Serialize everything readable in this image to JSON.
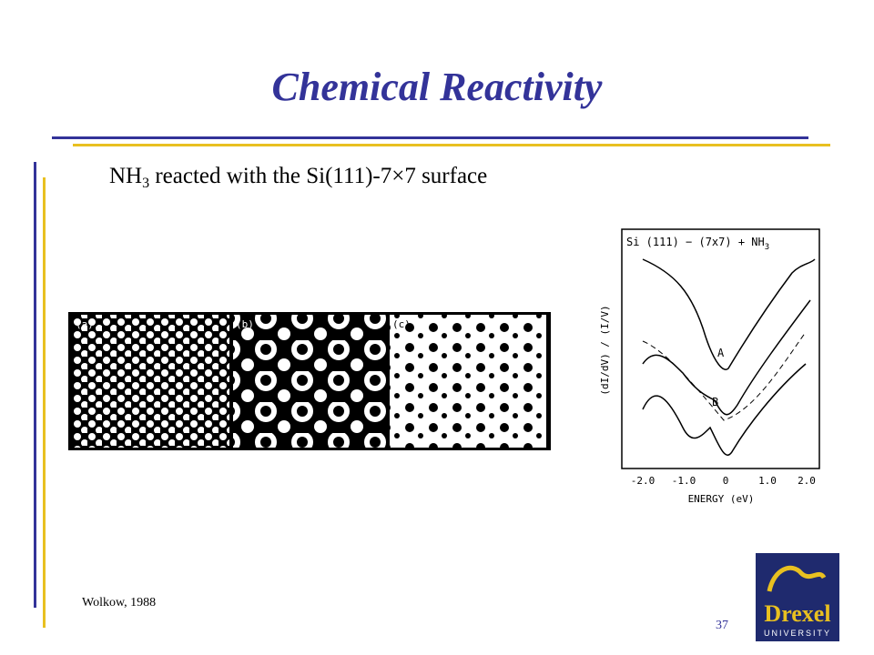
{
  "title": "Chemical Reactivity",
  "subtitle": {
    "main": "NH",
    "sub": "3",
    "rest": " reacted with the Si(111)-7×7 surface"
  },
  "stm_figure": {
    "panels": [
      "(a)",
      "(b)",
      "(c)"
    ]
  },
  "spectra_figure": {
    "title": "Si (111) − (7x7) + NH",
    "title_sub": "3",
    "ylabel": "(dI/dV) / (I/V)",
    "xticks": [
      "-2.0",
      "-1.0",
      "0",
      "1.0",
      "2.0"
    ],
    "xlabel": "ENERGY  (eV)",
    "curve_labels": [
      "A",
      "B"
    ]
  },
  "citation": "Wolkow, 1988",
  "page_number": "37",
  "logo": {
    "name": "Drexel",
    "sub": "UNIVERSITY"
  }
}
